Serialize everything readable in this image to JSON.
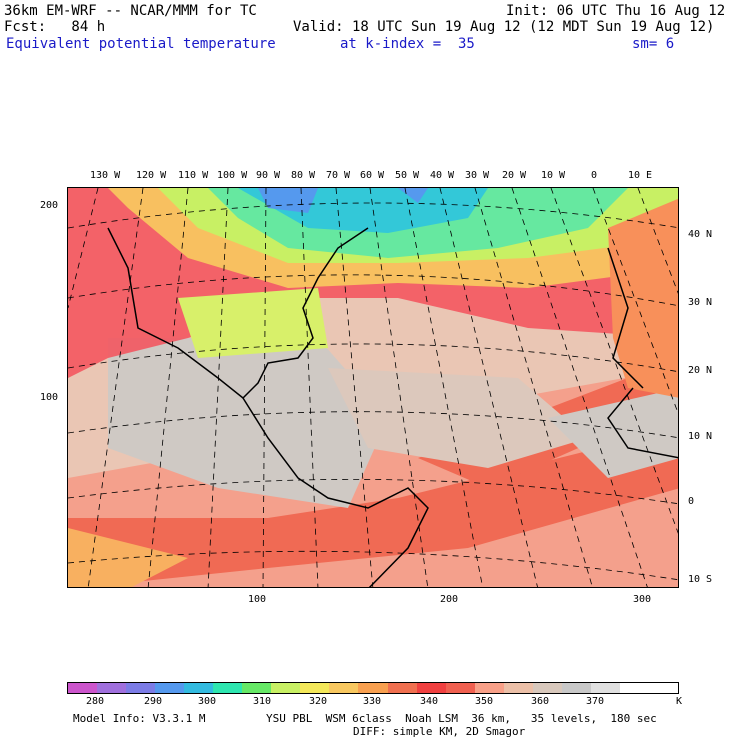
{
  "header": {
    "model_title": "36km EM-WRF -- NCAR/MMM for TC",
    "init": "Init: 06 UTC Thu 16 Aug 12",
    "fcst": "Fcst:   84 h",
    "valid": "Valid: 18 UTC Sun 19 Aug 12 (12 MDT Sun 19 Aug 12)",
    "field": "Equivalent potential temperature",
    "k_index": "at k-index =  35",
    "sm": "sm= 6"
  },
  "map": {
    "top_lon_labels": [
      "130 W",
      "120 W",
      "110 W",
      "100 W",
      "90 W",
      "80 W",
      "70 W",
      "60 W",
      "50 W",
      "40 W",
      "30 W",
      "20 W",
      "10 W",
      "0",
      "10 E"
    ],
    "right_lat_labels": [
      "40 N",
      "30 N",
      "20 N",
      "10 N",
      "0",
      "10 S"
    ],
    "left_grid_labels": [
      "200",
      "100"
    ],
    "bottom_grid_labels": [
      "100",
      "200",
      "300"
    ]
  },
  "colorbar": {
    "colors": [
      "#cc55cc",
      "#a070dd",
      "#7c7ce6",
      "#5599ee",
      "#33bbe0",
      "#2ee6b0",
      "#66e866",
      "#c8f064",
      "#f4e85a",
      "#f8c860",
      "#f8a050",
      "#f07050",
      "#f04040",
      "#f06050",
      "#f8a088",
      "#ecc0a8",
      "#d8c8bc",
      "#c8c8c8",
      "#e0e0e0",
      "#ffffff",
      "#ffffff"
    ],
    "tick_labels": [
      "280",
      "290",
      "300",
      "310",
      "320",
      "330",
      "340",
      "350",
      "360",
      "370"
    ],
    "unit": "K"
  },
  "footer": {
    "model_info": "Model Info: V3.3.1 M",
    "physics": "YSU PBL  WSM 6class  Noah LSM  36 km,   35 levels,  180 sec",
    "diff": "DIFF: simple KM, 2D Smagor"
  }
}
